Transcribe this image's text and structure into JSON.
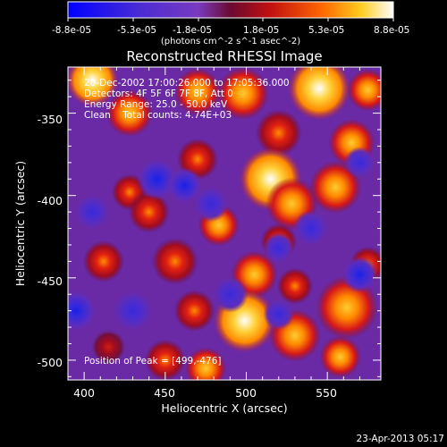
{
  "chart_data": {
    "type": "heatmap",
    "title": "Reconstructed RHESSI Image",
    "xlabel": "Heliocentric X (arcsec)",
    "ylabel": "Heliocentric Y (arcsec)",
    "xlim": [
      390,
      583
    ],
    "ylim": [
      -512,
      -322
    ],
    "x_ticks": [
      400,
      450,
      500,
      550
    ],
    "y_ticks": [
      -350,
      -400,
      -450,
      -500
    ],
    "colorbar": {
      "ticks": [
        "-8.8e-05",
        "-5.3e-05",
        "-1.8e-05",
        "1.8e-05",
        "5.3e-05",
        "8.8e-05"
      ],
      "unit_label": "(photons cm^-2 s^-1 asec^-2)",
      "range": [
        -8.8e-05,
        8.8e-05
      ]
    },
    "annotations": [
      "20-Dec-2002 17:00:26.000 to 17:05:36.000",
      "Detectors: 4F 5F 6F 7F 8F, Att 0",
      "Energy Range: 25.0 - 50.0 keV",
      "Clean    Total counts: 4.74E+03"
    ],
    "peak_label": "Position of Peak = [499,-476]",
    "peak": [
      499,
      -476
    ],
    "timestamp": "23-Apr-2013 05:17",
    "sources": [
      {
        "x": 405,
        "y": -330,
        "v": 0.95,
        "s": 10
      },
      {
        "x": 428,
        "y": -350,
        "v": 0.8,
        "s": 9
      },
      {
        "x": 470,
        "y": -337,
        "v": 0.85,
        "s": 9
      },
      {
        "x": 498,
        "y": -338,
        "v": 0.9,
        "s": 10
      },
      {
        "x": 545,
        "y": -335,
        "v": 0.95,
        "s": 12
      },
      {
        "x": 575,
        "y": -336,
        "v": 0.8,
        "s": 8
      },
      {
        "x": 520,
        "y": -362,
        "v": 0.7,
        "s": 9
      },
      {
        "x": 565,
        "y": -368,
        "v": 0.9,
        "s": 9
      },
      {
        "x": 470,
        "y": -378,
        "v": 0.6,
        "s": 8
      },
      {
        "x": 515,
        "y": -390,
        "v": 0.95,
        "s": 12
      },
      {
        "x": 555,
        "y": -395,
        "v": 0.85,
        "s": 10
      },
      {
        "x": 428,
        "y": -398,
        "v": 0.55,
        "s": 7
      },
      {
        "x": 440,
        "y": -410,
        "v": 0.7,
        "s": 8
      },
      {
        "x": 483,
        "y": -418,
        "v": 0.75,
        "s": 8
      },
      {
        "x": 528,
        "y": -405,
        "v": 0.8,
        "s": 10
      },
      {
        "x": 412,
        "y": -440,
        "v": 0.65,
        "s": 8
      },
      {
        "x": 456,
        "y": -440,
        "v": 0.7,
        "s": 9
      },
      {
        "x": 505,
        "y": -448,
        "v": 0.75,
        "s": 9
      },
      {
        "x": 520,
        "y": -428,
        "v": 0.55,
        "s": 7
      },
      {
        "x": 468,
        "y": -470,
        "v": 0.6,
        "s": 8
      },
      {
        "x": 499,
        "y": -476,
        "v": 1.0,
        "s": 12
      },
      {
        "x": 530,
        "y": -485,
        "v": 0.9,
        "s": 10
      },
      {
        "x": 562,
        "y": -468,
        "v": 0.9,
        "s": 12
      },
      {
        "x": 575,
        "y": -442,
        "v": 0.6,
        "s": 7
      },
      {
        "x": 450,
        "y": -500,
        "v": 0.6,
        "s": 8
      },
      {
        "x": 475,
        "y": -505,
        "v": 0.75,
        "s": 8
      },
      {
        "x": 558,
        "y": -498,
        "v": 0.75,
        "s": 8
      },
      {
        "x": 415,
        "y": -492,
        "v": 0.35,
        "s": 7
      },
      {
        "x": 530,
        "y": -455,
        "v": 0.55,
        "s": 7
      },
      {
        "x": 445,
        "y": -390,
        "v": -0.6,
        "s": 8
      },
      {
        "x": 462,
        "y": -394,
        "v": -0.55,
        "s": 7
      },
      {
        "x": 570,
        "y": -380,
        "v": -0.5,
        "s": 6
      },
      {
        "x": 395,
        "y": -470,
        "v": -0.6,
        "s": 8
      },
      {
        "x": 405,
        "y": -410,
        "v": -0.45,
        "s": 7
      },
      {
        "x": 570,
        "y": -448,
        "v": -0.55,
        "s": 7
      },
      {
        "x": 490,
        "y": -460,
        "v": -0.5,
        "s": 7
      },
      {
        "x": 520,
        "y": -432,
        "v": -0.45,
        "s": 6
      },
      {
        "x": 430,
        "y": -470,
        "v": -0.5,
        "s": 8
      },
      {
        "x": 540,
        "y": -420,
        "v": -0.4,
        "s": 7
      },
      {
        "x": 478,
        "y": -405,
        "v": -0.3,
        "s": 7
      },
      {
        "x": 520,
        "y": -472,
        "v": -0.35,
        "s": 6
      }
    ]
  }
}
